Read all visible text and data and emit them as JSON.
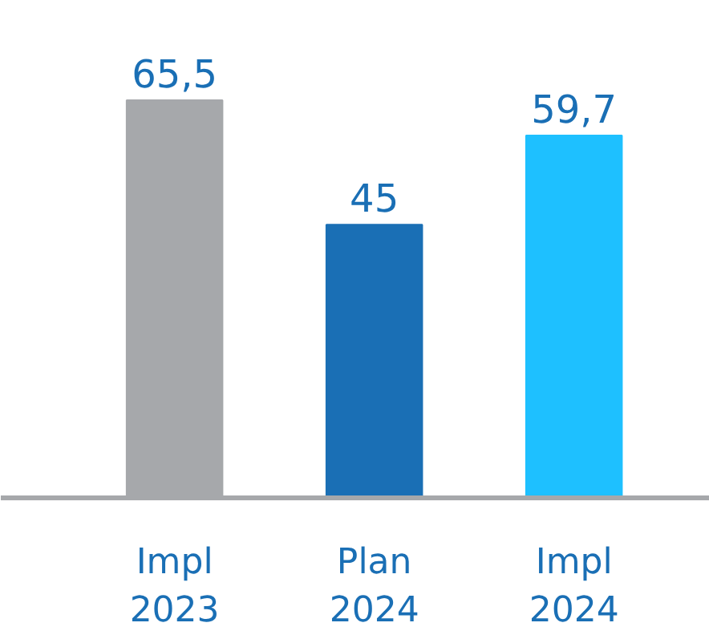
{
  "chart_data": {
    "type": "bar",
    "categories": [
      "Impl\n2023",
      "Plan\n2024",
      "Impl\n2024"
    ],
    "values": [
      65.5,
      45,
      59.7
    ],
    "colors": [
      "#a6a8ab",
      "#1a6fb5",
      "#1ec0ff"
    ],
    "value_labels": [
      "65,5",
      "45",
      "59,7"
    ]
  }
}
